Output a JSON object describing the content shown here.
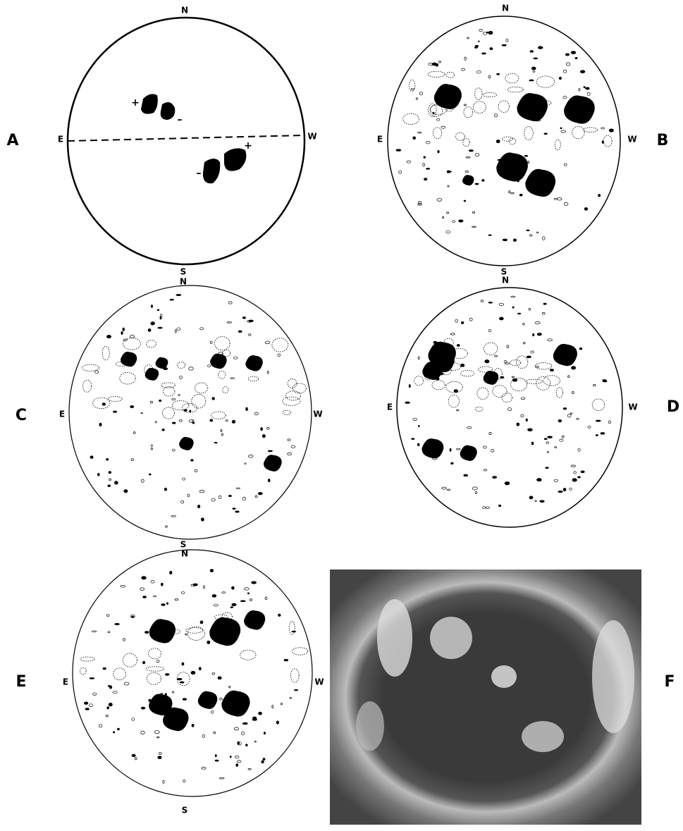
{
  "panels": [
    {
      "label": "A",
      "north": "N",
      "south": "S",
      "east": "E",
      "west": "W",
      "signs": [
        "+",
        "–",
        "–",
        "+"
      ]
    },
    {
      "label": "B",
      "north": "N",
      "south": "S",
      "east": "E",
      "west": "W"
    },
    {
      "label": "C",
      "north": "N",
      "south": "S",
      "east": "E",
      "west": "W"
    },
    {
      "label": "D",
      "north": "N",
      "east": "E",
      "west": "W"
    },
    {
      "label": "E",
      "north": "N",
      "south": "S",
      "east": "E",
      "west": "W"
    },
    {
      "label": "F"
    }
  ]
}
